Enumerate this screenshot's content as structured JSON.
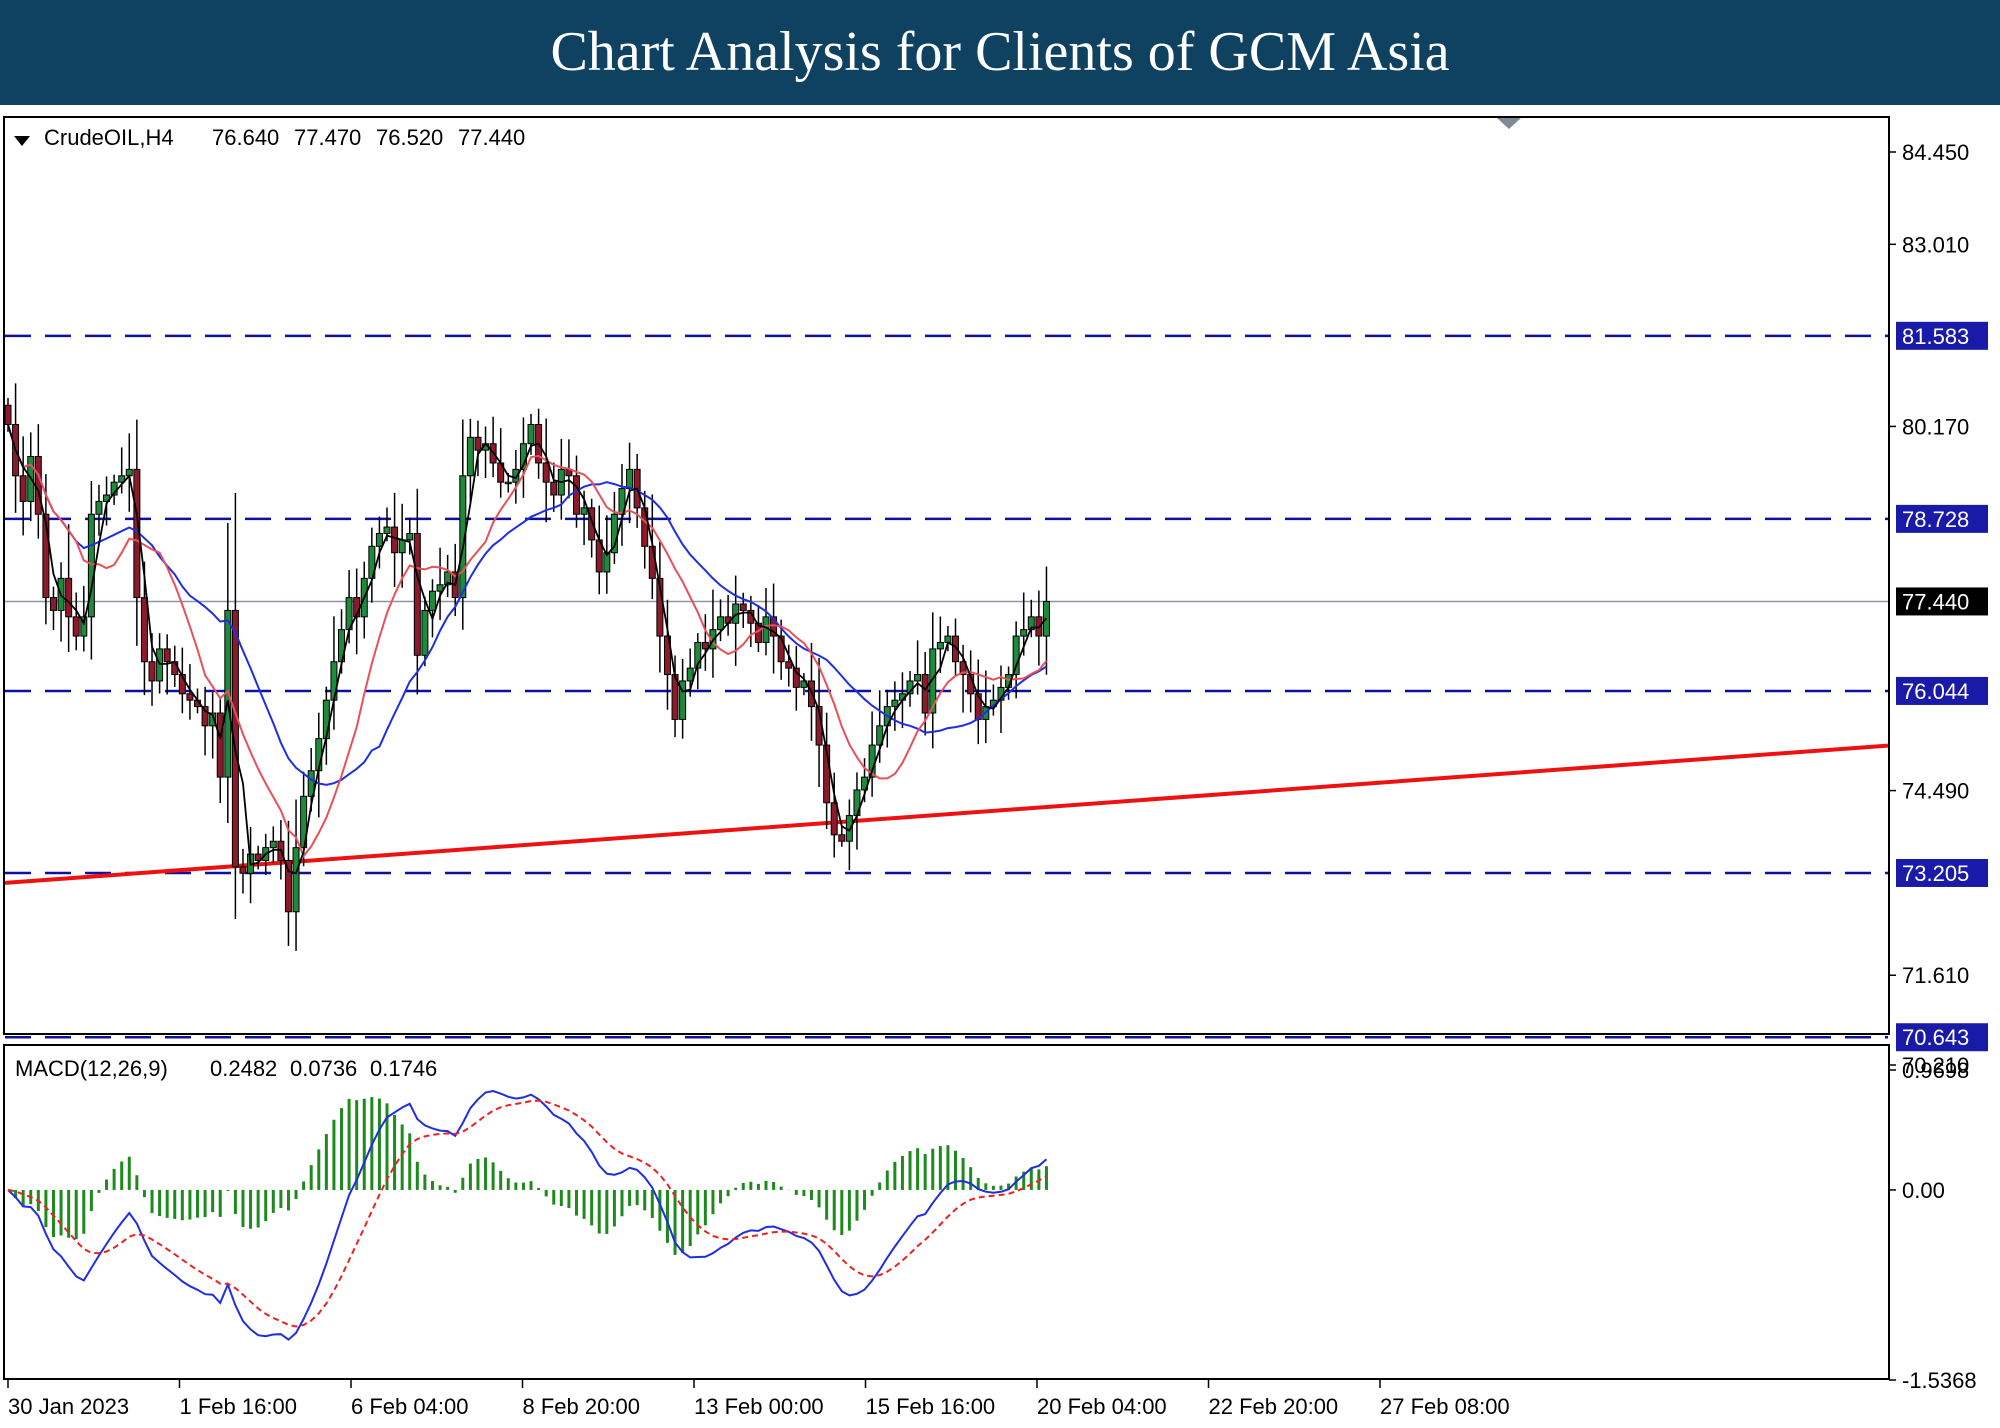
{
  "banner": {
    "title": "Chart Analysis for Clients of GCM Asia"
  },
  "colors": {
    "banner_bg": "#0f4161",
    "bull_candle": "#1e8a3c",
    "bear_candle": "#8b1a2b",
    "ma_fast": "#000000",
    "ma_mid": "#e8505a",
    "ma_slow": "#1f2fe0",
    "level_line": "#1010a0",
    "level_badge": "#1a1aa8",
    "trendline": "#ee1111",
    "current_price_line": "#8a96a8",
    "current_badge": "#000000",
    "macd_hist": "#1e8a1e",
    "macd_line": "#1f2fe0",
    "signal_line": "#ee2020"
  },
  "icons": {
    "symbol_menu": "triangle-down-icon",
    "chart_shift": "triangle-down-marker-icon"
  },
  "header": {
    "symbol": "CrudeOIL,H4",
    "open": "76.640",
    "high": "77.470",
    "low": "76.520",
    "close": "77.440"
  },
  "chart_data": [
    {
      "type": "candlestick",
      "symbol": "CrudeOIL",
      "timeframe": "H4",
      "ylim": [
        70.21,
        84.45
      ],
      "y_ticks": [
        "84.450",
        "83.010",
        "80.170",
        "74.490",
        "71.610",
        "70.210"
      ],
      "x_ticks": [
        "30 Jan 2023",
        "1 Feb 16:00",
        "6 Feb 04:00",
        "8 Feb 20:00",
        "13 Feb 00:00",
        "15 Feb 16:00",
        "20 Feb 04:00",
        "22 Feb 20:00",
        "27 Feb 08:00"
      ],
      "levels": [
        {
          "label": "81.583",
          "value": 81.583
        },
        {
          "label": "78.728",
          "value": 78.728
        },
        {
          "label": "76.044",
          "value": 76.044
        },
        {
          "label": "73.205",
          "value": 73.205
        },
        {
          "label": "70.643",
          "value": 70.643
        }
      ],
      "current_price": {
        "label": "77.440",
        "value": 77.44
      },
      "trendline": {
        "start": {
          "bar": 0,
          "price": 73.05
        },
        "end": {
          "bar": 145,
          "price": 74.3
        }
      },
      "closes": [
        80.2,
        79.4,
        79.0,
        79.7,
        78.8,
        77.5,
        77.3,
        77.8,
        77.2,
        76.9,
        77.2,
        78.8,
        79.0,
        79.1,
        79.3,
        79.4,
        79.5,
        77.5,
        76.5,
        76.2,
        76.7,
        76.5,
        76.3,
        76.0,
        75.9,
        75.8,
        75.5,
        75.7,
        74.7,
        77.3,
        73.3,
        73.2,
        73.5,
        73.4,
        73.6,
        73.7,
        73.4,
        72.6,
        73.6,
        74.4,
        74.8,
        75.3,
        75.9,
        76.5,
        77.0,
        77.5,
        77.2,
        77.8,
        78.3,
        78.5,
        78.6,
        78.2,
        78.4,
        78.5,
        76.6,
        77.3,
        77.6,
        77.7,
        77.9,
        77.5,
        79.4,
        80.0,
        79.8,
        79.9,
        79.6,
        79.3,
        79.3,
        79.5,
        79.9,
        80.2,
        79.6,
        79.3,
        79.1,
        79.5,
        79.4,
        78.8,
        78.9,
        78.4,
        77.9,
        78.2,
        78.8,
        79.2,
        79.5,
        78.9,
        78.3,
        77.8,
        76.9,
        76.3,
        75.6,
        76.2,
        76.4,
        76.8,
        76.7,
        77.0,
        77.2,
        77.1,
        77.4,
        77.3,
        77.1,
        76.8,
        77.2,
        76.9,
        76.5,
        76.4,
        76.1,
        76.2,
        75.8,
        75.2,
        74.3,
        73.8,
        73.7,
        74.1,
        74.5,
        74.7,
        75.2,
        75.5,
        75.8,
        75.9,
        76.0,
        76.2,
        76.3,
        75.7,
        76.7,
        76.8,
        76.9,
        76.5,
        76.3,
        76.0,
        75.6,
        75.8,
        75.9,
        76.1,
        76.3,
        76.9,
        77.0,
        77.2,
        76.9,
        77.44
      ]
    },
    {
      "type": "macd",
      "title": "MACD(12,26,9)",
      "params": [
        12,
        26,
        9
      ],
      "values": [
        "0.2482",
        "0.0736",
        "0.1746"
      ],
      "ylim": [
        -1.5368,
        0.9698
      ],
      "y_ticks": [
        "0.9698",
        "0.00",
        "-1.5368"
      ]
    }
  ]
}
